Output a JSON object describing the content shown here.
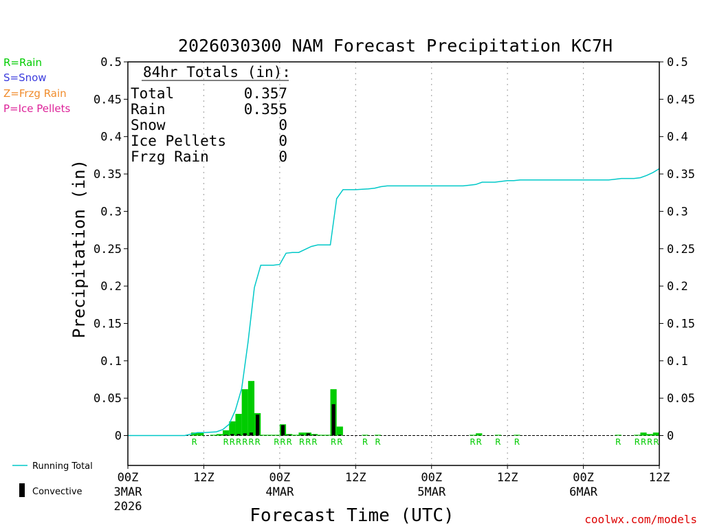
{
  "chart_data": {
    "type": "bar",
    "title": "2026030300 NAM Forecast Precipitation KC7H",
    "ylabel": "Precipitation (in)",
    "xlabel": "Forecast Time (UTC)",
    "ylim": [
      -0.04,
      0.5
    ],
    "xlim_hours": [
      0,
      84
    ],
    "y_ticks": [
      "0",
      "0.05",
      "0.1",
      "0.15",
      "0.2",
      "0.25",
      "0.3",
      "0.35",
      "0.4",
      "0.45",
      "0.5"
    ],
    "x_ticks": [
      {
        "hour": 0,
        "line1": "00Z",
        "line2": "3MAR",
        "line3": "2026"
      },
      {
        "hour": 12,
        "line1": "12Z",
        "line2": "",
        "line3": ""
      },
      {
        "hour": 24,
        "line1": "00Z",
        "line2": "4MAR",
        "line3": ""
      },
      {
        "hour": 36,
        "line1": "12Z",
        "line2": "",
        "line3": ""
      },
      {
        "hour": 48,
        "line1": "00Z",
        "line2": "5MAR",
        "line3": ""
      },
      {
        "hour": 60,
        "line1": "12Z",
        "line2": "",
        "line3": ""
      },
      {
        "hour": 72,
        "line1": "00Z",
        "line2": "6MAR",
        "line3": ""
      },
      {
        "hour": 84,
        "line1": "12Z",
        "line2": "",
        "line3": ""
      }
    ],
    "precip_type_legend": [
      {
        "text": "R=Rain",
        "color": "#00cc00"
      },
      {
        "text": "S=Snow",
        "color": "#3b3bdd"
      },
      {
        "text": "Z=Frzg Rain",
        "color": "#f08c2c"
      },
      {
        "text": "P=Ice Pellets",
        "color": "#dd2299"
      }
    ],
    "series_legend": {
      "running_total": "Running Total",
      "convective": "Convective"
    },
    "totals_box": {
      "header": "84hr Totals (in):",
      "rows": [
        {
          "label": "Total",
          "value": "0.357"
        },
        {
          "label": "Rain",
          "value": "0.355"
        },
        {
          "label": "Snow",
          "value": "0"
        },
        {
          "label": "Ice Pellets",
          "value": "0"
        },
        {
          "label": "Frzg Rain",
          "value": "0"
        }
      ]
    },
    "hourly_precip": [
      {
        "hour": 11,
        "value": 0.004,
        "convective": 0,
        "type": "R"
      },
      {
        "hour": 12,
        "value": 0.004,
        "convective": 0,
        "type": "R"
      },
      {
        "hour": 14,
        "value": 0.001,
        "convective": 0,
        "type": ""
      },
      {
        "hour": 15,
        "value": 0.002,
        "convective": 0,
        "type": ""
      },
      {
        "hour": 16,
        "value": 0.007,
        "convective": 0.001,
        "type": "R"
      },
      {
        "hour": 17,
        "value": 0.019,
        "convective": 0.002,
        "type": "R"
      },
      {
        "hour": 18,
        "value": 0.029,
        "convective": 0.002,
        "type": "R"
      },
      {
        "hour": 19,
        "value": 0.062,
        "convective": 0.003,
        "type": "R"
      },
      {
        "hour": 20,
        "value": 0.073,
        "convective": 0.004,
        "type": "R"
      },
      {
        "hour": 21,
        "value": 0.03,
        "convective": 0.028,
        "type": "R"
      },
      {
        "hour": 22,
        "value": 0.001,
        "convective": 0,
        "type": ""
      },
      {
        "hour": 23,
        "value": 0.001,
        "convective": 0,
        "type": ""
      },
      {
        "hour": 24,
        "value": 0.001,
        "convective": 0,
        "type": "R"
      },
      {
        "hour": 25,
        "value": 0.015,
        "convective": 0.014,
        "type": "R"
      },
      {
        "hour": 26,
        "value": 0.002,
        "convective": 0.001,
        "type": "R"
      },
      {
        "hour": 27,
        "value": 0.001,
        "convective": 0,
        "type": ""
      },
      {
        "hour": 28,
        "value": 0.004,
        "convective": 0.001,
        "type": "R"
      },
      {
        "hour": 29,
        "value": 0.004,
        "convective": 0.003,
        "type": "R"
      },
      {
        "hour": 30,
        "value": 0.002,
        "convective": 0.001,
        "type": "R"
      },
      {
        "hour": 31,
        "value": 0.001,
        "convective": 0,
        "type": ""
      },
      {
        "hour": 32,
        "value": 0.001,
        "convective": 0,
        "type": ""
      },
      {
        "hour": 33,
        "value": 0.062,
        "convective": 0.042,
        "type": "R"
      },
      {
        "hour": 34,
        "value": 0.012,
        "convective": 0.001,
        "type": "R"
      },
      {
        "hour": 38,
        "value": 0.001,
        "convective": 0,
        "type": "R"
      },
      {
        "hour": 40,
        "value": 0.001,
        "convective": 0,
        "type": "R"
      },
      {
        "hour": 55,
        "value": 0.001,
        "convective": 0,
        "type": "R"
      },
      {
        "hour": 56,
        "value": 0.003,
        "convective": 0,
        "type": "R"
      },
      {
        "hour": 59,
        "value": 0.001,
        "convective": 0,
        "type": "R"
      },
      {
        "hour": 62,
        "value": 0.001,
        "convective": 0,
        "type": "R"
      },
      {
        "hour": 78,
        "value": 0.001,
        "convective": 0,
        "type": "R"
      },
      {
        "hour": 81,
        "value": 0.001,
        "convective": 0,
        "type": "R"
      },
      {
        "hour": 82,
        "value": 0.004,
        "convective": 0,
        "type": "R"
      },
      {
        "hour": 83,
        "value": 0.002,
        "convective": 0,
        "type": "R"
      },
      {
        "hour": 84,
        "value": 0.004,
        "convective": 0,
        "type": "R"
      }
    ],
    "running_total": {
      "hours": [
        0,
        9,
        11,
        12,
        14,
        15,
        16,
        17,
        18,
        19,
        20,
        21,
        22,
        23,
        24,
        25,
        26,
        27,
        28,
        29,
        30,
        31,
        32,
        33,
        34,
        36,
        38,
        39,
        40,
        41,
        48,
        53,
        54,
        55,
        56,
        57,
        58,
        59,
        60,
        61,
        62,
        63,
        72,
        75,
        76,
        77,
        78,
        79,
        80,
        81,
        82,
        83,
        84
      ],
      "values": [
        0,
        0,
        0.004,
        0.004,
        0.005,
        0.008,
        0.015,
        0.034,
        0.063,
        0.125,
        0.198,
        0.228,
        0.228,
        0.228,
        0.229,
        0.244,
        0.245,
        0.245,
        0.249,
        0.253,
        0.255,
        0.255,
        0.255,
        0.317,
        0.329,
        0.329,
        0.33,
        0.331,
        0.333,
        0.334,
        0.334,
        0.334,
        0.335,
        0.336,
        0.339,
        0.339,
        0.339,
        0.34,
        0.341,
        0.341,
        0.342,
        0.342,
        0.342,
        0.342,
        0.342,
        0.343,
        0.344,
        0.344,
        0.344,
        0.345,
        0.348,
        0.352,
        0.357
      ]
    },
    "type_marker_hours": [
      11,
      16,
      17,
      18,
      19,
      20,
      21,
      24,
      25,
      26,
      28,
      29,
      30,
      33,
      34,
      38,
      40,
      55,
      56,
      59,
      62,
      78,
      81,
      82,
      83,
      84
    ],
    "colors": {
      "rain": "#00cc00",
      "total_line": "#00c8c8",
      "convective": "#000000",
      "grid": "#a8a8a8"
    }
  },
  "credit": "coolwx.com/models"
}
